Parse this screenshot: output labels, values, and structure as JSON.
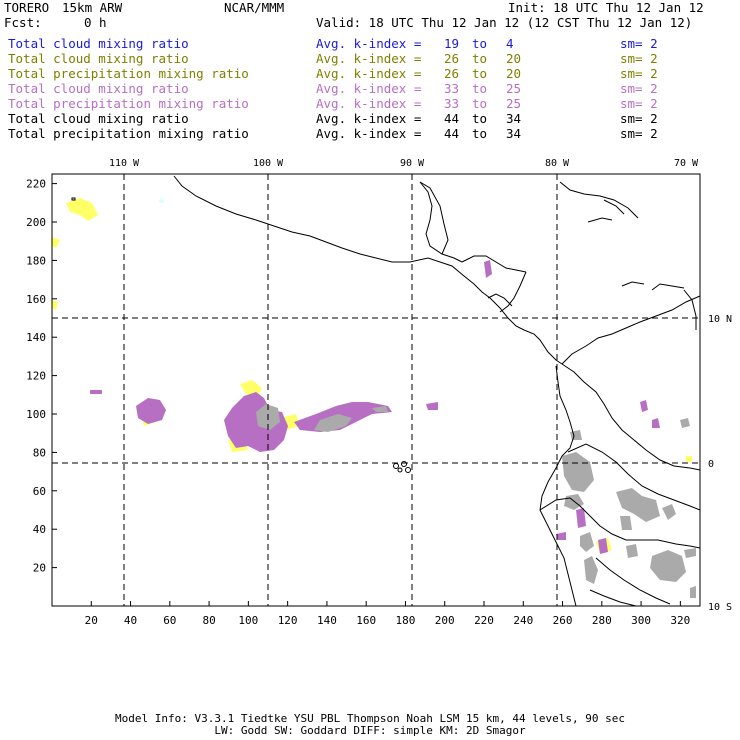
{
  "header": {
    "domain_name": "TORERO",
    "model_desc": "15km ARW",
    "org": "NCAR/MMM",
    "init": "Init: 18 UTC Thu 12 Jan 12",
    "fcst_label": "Fcst:",
    "fcst_value": "0 h",
    "valid": "Valid: 18 UTC Thu 12 Jan 12 (12 CST Thu 12 Jan 12)"
  },
  "legend": [
    {
      "field": "Total cloud mixing ratio",
      "kindex": "Avg. k-index =",
      "a": "19",
      "to": "to",
      "b": "4",
      "sm": "sm= 2",
      "color": "#1a1adc"
    },
    {
      "field": "Total cloud mixing ratio",
      "kindex": "Avg. k-index =",
      "a": "26",
      "to": "to",
      "b": "20",
      "sm": "sm= 2",
      "color": "#7f7f00"
    },
    {
      "field": "Total precipitation mixing ratio",
      "kindex": "Avg. k-index =",
      "a": "26",
      "to": "to",
      "b": "20",
      "sm": "sm= 2",
      "color": "#7f7f00"
    },
    {
      "field": "Total cloud mixing ratio",
      "kindex": "Avg. k-index =",
      "a": "33",
      "to": "to",
      "b": "25",
      "sm": "sm= 2",
      "color": "#b76fc4"
    },
    {
      "field": "Total precipitation mixing ratio",
      "kindex": "Avg. k-index =",
      "a": "33",
      "to": "to",
      "b": "25",
      "sm": "sm= 2",
      "color": "#b76fc4"
    },
    {
      "field": "Total cloud mixing ratio",
      "kindex": "Avg. k-index =",
      "a": "44",
      "to": "to",
      "b": "34",
      "sm": "sm= 2",
      "color": "#000000"
    },
    {
      "field": "Total precipitation mixing ratio",
      "kindex": "Avg. k-index =",
      "a": "44",
      "to": "to",
      "b": "34",
      "sm": "sm= 2",
      "color": "#000000"
    }
  ],
  "map": {
    "lon_labels": [
      "110 W",
      "100 W",
      "90 W",
      "80 W",
      "70 W"
    ],
    "lat_labels": [
      "10 N",
      "0",
      "10 S"
    ],
    "x_ticks": [
      "20",
      "40",
      "60",
      "80",
      "100",
      "120",
      "140",
      "160",
      "180",
      "200",
      "220",
      "240",
      "260",
      "280",
      "300",
      "320"
    ],
    "y_ticks": [
      "220",
      "200",
      "180",
      "160",
      "140",
      "120",
      "100",
      "80",
      "60",
      "40",
      "20"
    ],
    "x_range": [
      0,
      330
    ],
    "y_range": [
      0,
      225
    ],
    "grid_lines_x": [
      40,
      112,
      184,
      261
    ],
    "grid_lines_y": [
      76,
      150
    ],
    "shading_colors": {
      "yellow": "#ffff66",
      "violet": "#b76fc4",
      "gray": "#aaaaaa"
    }
  },
  "footer": {
    "line1": "Model Info: V3.3.1   Tiedtke YSU PBL  Thompson    Noah LSM  15 km,   44 levels,   90 sec",
    "line2": "LW: Godd SW: Goddard DIFF: simple KM: 2D Smagor"
  }
}
